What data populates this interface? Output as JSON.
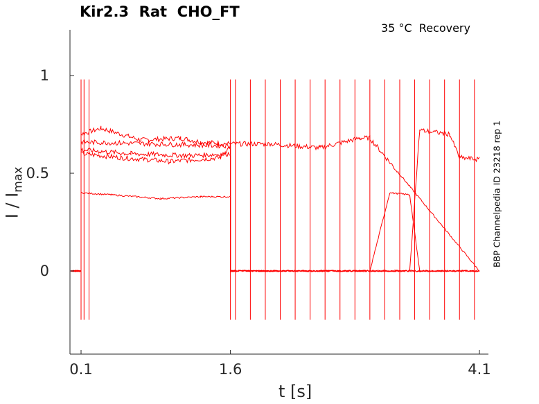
{
  "chart_data": {
    "type": "line",
    "title": "Kir2.3  Rat  CHO_FT",
    "subtitle": "35 °C  Recovery",
    "side_label": "BBP Channelpedia ID 23218 rep 1",
    "xlabel": "t [s]",
    "ylabel": "I / I",
    "ylabel_sub": "max",
    "xticks": [
      0.1,
      1.6,
      4.1
    ],
    "xtick_labels": [
      "0.1",
      "1.6",
      "4.1"
    ],
    "yticks": [
      0,
      0.5,
      1
    ],
    "ytick_labels": [
      "0",
      "0.5",
      "1"
    ],
    "xlim": [
      0,
      4.2
    ],
    "ylim": [
      -0.42,
      1.23
    ],
    "line_color": "#ff0000",
    "grid": false,
    "legend": "none",
    "series": [
      {
        "x": [
          0.0,
          0.1,
          0.1,
          0.3,
          0.7,
          1.1,
          1.3,
          1.6,
          1.6,
          4.1
        ],
        "y": [
          0.0,
          0.0,
          0.7,
          0.73,
          0.67,
          0.68,
          0.66,
          0.65,
          0.0,
          0.0
        ]
      },
      {
        "x": [
          0.0,
          0.1,
          0.1,
          0.5,
          1.0,
          1.5,
          1.6,
          1.6,
          2.0,
          2.5,
          2.9,
          3.0,
          4.1
        ],
        "y": [
          0.0,
          0.0,
          0.6,
          0.58,
          0.56,
          0.58,
          0.64,
          0.65,
          0.65,
          0.63,
          0.68,
          0.68,
          0.0
        ]
      },
      {
        "x": [
          0.0,
          0.1,
          0.1,
          0.4,
          0.9,
          1.3,
          1.6,
          1.6,
          4.1
        ],
        "y": [
          0.0,
          0.0,
          0.4,
          0.39,
          0.37,
          0.38,
          0.38,
          0.0,
          0.0
        ]
      },
      {
        "x": [
          0.0,
          0.1,
          0.1,
          0.6,
          1.2,
          1.6,
          1.6,
          3.0,
          3.2,
          3.4,
          3.5,
          4.1
        ],
        "y": [
          0.0,
          0.0,
          0.62,
          0.6,
          0.59,
          0.6,
          0.0,
          0.0,
          0.4,
          0.39,
          0.0,
          0.0
        ]
      },
      {
        "x": [
          0.0,
          0.1,
          0.1,
          1.6,
          1.6,
          3.4,
          3.5,
          3.8,
          3.9,
          4.1
        ],
        "y": [
          0.0,
          0.0,
          0.66,
          0.64,
          0.0,
          0.0,
          0.72,
          0.7,
          0.58,
          0.57
        ]
      }
    ]
  }
}
